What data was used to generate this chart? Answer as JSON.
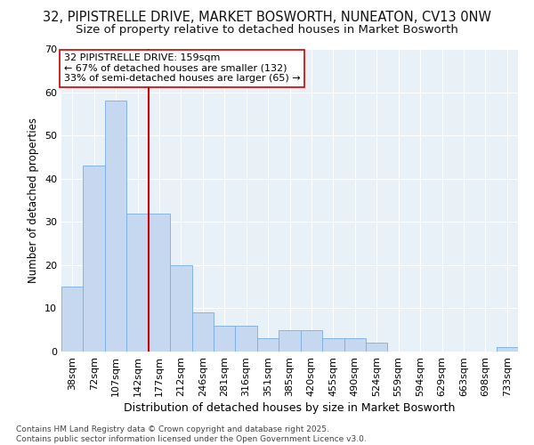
{
  "title": "32, PIPISTRELLE DRIVE, MARKET BOSWORTH, NUNEATON, CV13 0NW",
  "subtitle": "Size of property relative to detached houses in Market Bosworth",
  "xlabel": "Distribution of detached houses by size in Market Bosworth",
  "ylabel": "Number of detached properties",
  "bar_values": [
    15,
    43,
    58,
    32,
    32,
    20,
    9,
    6,
    6,
    3,
    5,
    5,
    3,
    3,
    2,
    0,
    0,
    0,
    0,
    0,
    1
  ],
  "bin_labels": [
    "38sqm",
    "72sqm",
    "107sqm",
    "142sqm",
    "177sqm",
    "212sqm",
    "246sqm",
    "281sqm",
    "316sqm",
    "351sqm",
    "385sqm",
    "420sqm",
    "455sqm",
    "490sqm",
    "524sqm",
    "559sqm",
    "594sqm",
    "629sqm",
    "663sqm",
    "698sqm",
    "733sqm"
  ],
  "bar_color": "#c5d8ef",
  "bar_edge_color": "#7aade0",
  "background_color": "#e8f0f8",
  "grid_color": "#ffffff",
  "vline_color": "#cc0000",
  "annotation_text": "32 PIPISTRELLE DRIVE: 159sqm\n← 67% of detached houses are smaller (132)\n33% of semi-detached houses are larger (65) →",
  "annotation_box_color": "#ffffff",
  "annotation_box_edge": "#cc0000",
  "ylim": [
    0,
    70
  ],
  "yticks": [
    0,
    10,
    20,
    30,
    40,
    50,
    60,
    70
  ],
  "footer": "Contains HM Land Registry data © Crown copyright and database right 2025.\nContains public sector information licensed under the Open Government Licence v3.0.",
  "title_fontsize": 10.5,
  "subtitle_fontsize": 9.5,
  "xlabel_fontsize": 9,
  "ylabel_fontsize": 8.5,
  "tick_fontsize": 8,
  "annotation_fontsize": 8,
  "footer_fontsize": 6.5
}
